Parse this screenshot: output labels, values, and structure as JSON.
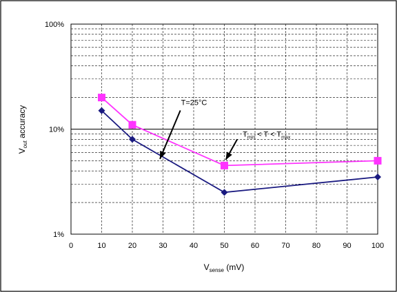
{
  "chart_data": {
    "type": "line",
    "title": "",
    "xlabel": {
      "main": "V",
      "sub": "sense",
      "tail": " (mV)"
    },
    "ylabel": {
      "main": "V",
      "sub": "out",
      "tail": " accuracy"
    },
    "x_ticks": [
      0,
      10,
      20,
      30,
      40,
      50,
      60,
      70,
      80,
      90,
      100
    ],
    "y_scale": "log",
    "y_ticks": [
      {
        "value": 0.01,
        "label": "1%"
      },
      {
        "value": 0.1,
        "label": "10%"
      },
      {
        "value": 1.0,
        "label": "100%"
      }
    ],
    "xlim": [
      0,
      100
    ],
    "ylim": [
      0.01,
      1.0
    ],
    "grid": "dashed",
    "series": [
      {
        "color": "#1a1a80",
        "marker": "diamond",
        "points": [
          [
            10,
            0.15
          ],
          [
            20,
            0.08
          ],
          [
            50,
            0.025
          ],
          [
            100,
            0.035
          ]
        ]
      },
      {
        "color": "#ff33ff",
        "marker": "square",
        "points": [
          [
            10,
            0.2
          ],
          [
            20,
            0.11
          ],
          [
            50,
            0.045
          ],
          [
            100,
            0.05
          ]
        ]
      }
    ],
    "annotations": [
      {
        "text": "T=25°C",
        "target": [
          29,
          0.052
        ],
        "label_at": [
          37,
          0.17
        ]
      },
      {
        "text": "T_min < T < T_max",
        "target": [
          50,
          0.048
        ],
        "label_at": [
          56,
          0.085
        ]
      }
    ]
  }
}
